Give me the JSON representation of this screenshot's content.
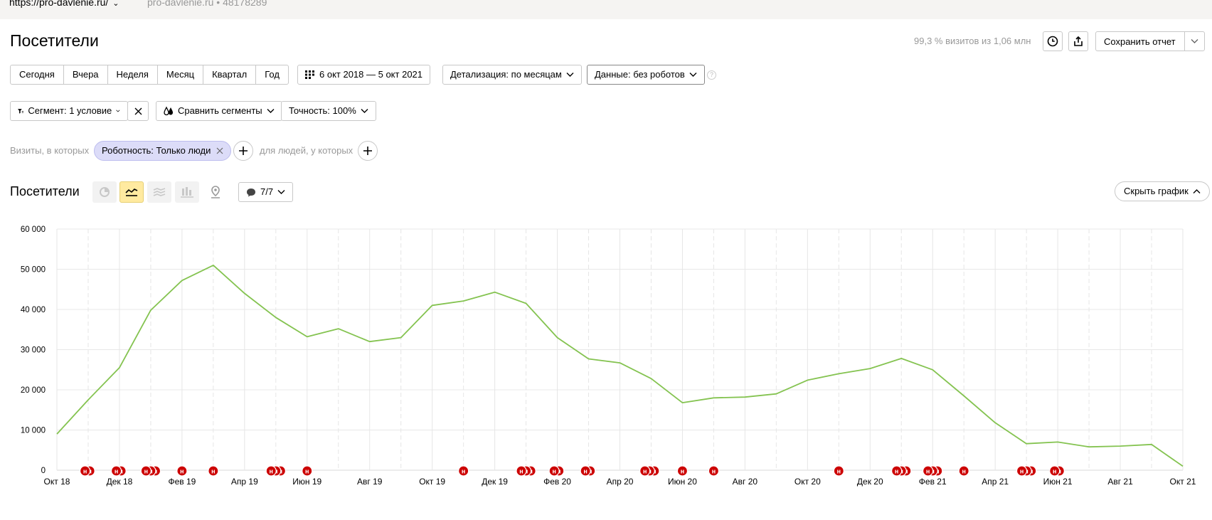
{
  "header": {
    "url": "https://pro-davlenie.ru/",
    "meta": "pro-davlenie.ru • 48178289"
  },
  "page_title": "Посетители",
  "coverage": "99,3 % визитов из 1,06 млн",
  "toolbar": {
    "save_label": "Сохранить отчет",
    "periods": [
      "Сегодня",
      "Вчера",
      "Неделя",
      "Месяц",
      "Квартал",
      "Год"
    ],
    "date_range": "6 окт 2018 — 5 окт 2021",
    "detail": "Детализация: по месяцам",
    "data": "Данные: без роботов",
    "help": "?"
  },
  "segment": {
    "segment_label": "Сегмент: 1 условие",
    "compare_label": "Сравнить сегменты",
    "accuracy_label": "Точность: 100%",
    "visits_label": "Визиты, в которых",
    "chip_label": "Роботность: Только люди",
    "people_label": "для людей, у которых"
  },
  "section": {
    "title": "Посетители",
    "notes_count": "7/7",
    "hide_chart": "Скрыть график"
  },
  "chart_data": {
    "type": "line",
    "color": "#84c350",
    "marker_color": "#cc0000",
    "marker_label": "н",
    "ylim": [
      0,
      60000
    ],
    "y_ticks": [
      0,
      10000,
      20000,
      30000,
      40000,
      50000,
      60000
    ],
    "y_tick_labels": [
      "0",
      "10 000",
      "20 000",
      "30 000",
      "40 000",
      "50 000",
      "60 000"
    ],
    "x_tick_labels": [
      "Окт 18",
      "Дек 18",
      "Фев 19",
      "Апр 19",
      "Июн 19",
      "Авг 19",
      "Окт 19",
      "Дек 19",
      "Фев 20",
      "Апр 20",
      "Июн 20",
      "Авг 20",
      "Окт 20",
      "Дек 20",
      "Фев 21",
      "Апр 21",
      "Июн 21",
      "Авг 21",
      "Окт 21"
    ],
    "x_tick_months": [
      0,
      2,
      4,
      6,
      8,
      10,
      12,
      14,
      16,
      18,
      20,
      22,
      24,
      26,
      28,
      30,
      32,
      34,
      36
    ],
    "grid": true,
    "months": [
      "Окт 18",
      "Ноя 18",
      "Дек 18",
      "Янв 19",
      "Фев 19",
      "Мар 19",
      "Апр 19",
      "Май 19",
      "Июн 19",
      "Июл 19",
      "Авг 19",
      "Сен 19",
      "Окт 19",
      "Ноя 19",
      "Дек 19",
      "Янв 20",
      "Фев 20",
      "Мар 20",
      "Апр 20",
      "Май 20",
      "Июн 20",
      "Июл 20",
      "Авг 20",
      "Сен 20",
      "Окт 20",
      "Ноя 20",
      "Дек 20",
      "Янв 21",
      "Фев 21",
      "Мар 21",
      "Апр 21",
      "Май 21",
      "Июн 21",
      "Июл 21",
      "Авг 21",
      "Сен 21",
      "Окт 21"
    ],
    "values": [
      9000,
      17500,
      25500,
      39800,
      47200,
      51000,
      44000,
      38000,
      33200,
      35200,
      32000,
      33000,
      41000,
      42100,
      44300,
      41500,
      33000,
      27700,
      26700,
      22800,
      16800,
      18000,
      18200,
      19000,
      22400,
      24000,
      25300,
      27800,
      25000,
      18500,
      11800,
      6600,
      7000,
      5800,
      6000,
      6400,
      1000
    ],
    "note_positions": [
      [
        0.9,
        1.05
      ],
      [
        1.9,
        2.05
      ],
      [
        2.85,
        3.0,
        3.15
      ],
      [
        4.0
      ],
      [
        5.0
      ],
      [
        6.85,
        7.0,
        7.15
      ],
      [
        8.0
      ],
      [
        13.0
      ],
      [
        14.85,
        15.0,
        15.15
      ],
      [
        15.9,
        16.05
      ],
      [
        16.9,
        17.05
      ],
      [
        18.8,
        18.95,
        19.1
      ],
      [
        20.0
      ],
      [
        21.0
      ],
      [
        25.0
      ],
      [
        26.85,
        27.0,
        27.15
      ],
      [
        27.85,
        28.0,
        28.15
      ],
      [
        29.0
      ],
      [
        30.85,
        31.0,
        31.15
      ],
      [
        31.9,
        32.05
      ]
    ]
  }
}
